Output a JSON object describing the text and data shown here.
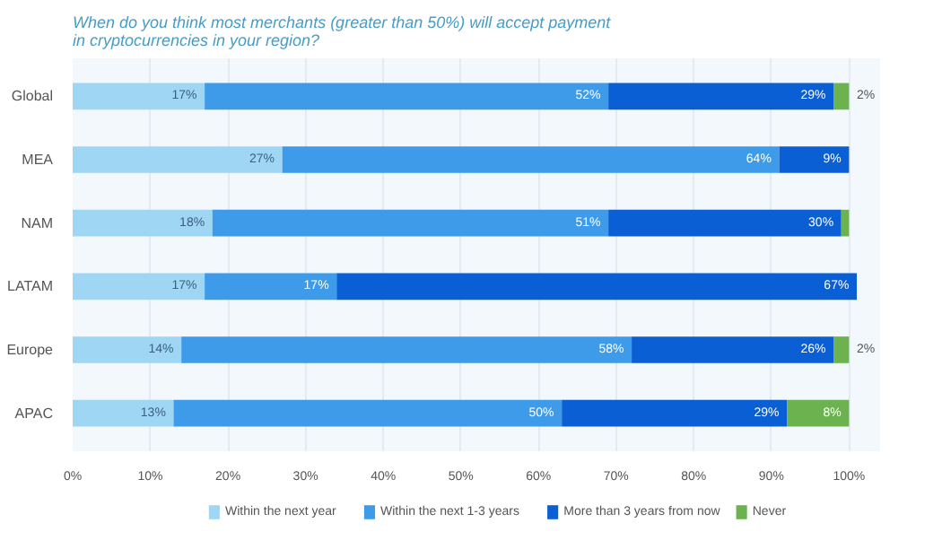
{
  "chart_data": {
    "type": "bar",
    "orientation": "horizontal",
    "stacked": true,
    "title": "When do you think most merchants (greater than 50%) will accept payment in cryptocurrencies in your region?",
    "categories": [
      "Global",
      "MEA",
      "NAM",
      "LATAM",
      "Europe",
      "APAC"
    ],
    "series": [
      {
        "name": "Within the next year",
        "color": "#9fd6f4",
        "values": [
          17,
          27,
          18,
          17,
          14,
          13
        ],
        "value_labels": [
          "17%",
          "27%",
          "18%",
          "17%",
          "14%",
          "13%"
        ]
      },
      {
        "name": "Within the next 1-3 years",
        "color": "#3d9be9",
        "values": [
          52,
          64,
          51,
          17,
          58,
          50
        ],
        "value_labels": [
          "52%",
          "64%",
          "51%",
          "17%",
          "58%",
          "50%"
        ]
      },
      {
        "name": "More than 3 years from now",
        "color": "#0b5fd5",
        "values": [
          29,
          9,
          30,
          67,
          26,
          29
        ],
        "value_labels": [
          "29%",
          "9%",
          "30%",
          "67%",
          "26%",
          "29%"
        ]
      },
      {
        "name": "Never",
        "color": "#6cb34f",
        "values": [
          2,
          0,
          1,
          0,
          2,
          8
        ],
        "value_labels": [
          "2%",
          null,
          null,
          null,
          "2%",
          "8%"
        ]
      }
    ],
    "xlim": [
      0,
      104
    ],
    "xticks": [
      {
        "value": 0,
        "label": "0%"
      },
      {
        "value": 10,
        "label": "10%"
      },
      {
        "value": 20,
        "label": "20%"
      },
      {
        "value": 30,
        "label": "30%"
      },
      {
        "value": 40,
        "label": "40%"
      },
      {
        "value": 50,
        "label": "50%"
      },
      {
        "value": 60,
        "label": "60%"
      },
      {
        "value": 70,
        "label": "70%"
      },
      {
        "value": 80,
        "label": "80%"
      },
      {
        "value": 90,
        "label": "90%"
      },
      {
        "value": 100,
        "label": "100%"
      }
    ],
    "grid": "x",
    "legend": "bottom"
  }
}
